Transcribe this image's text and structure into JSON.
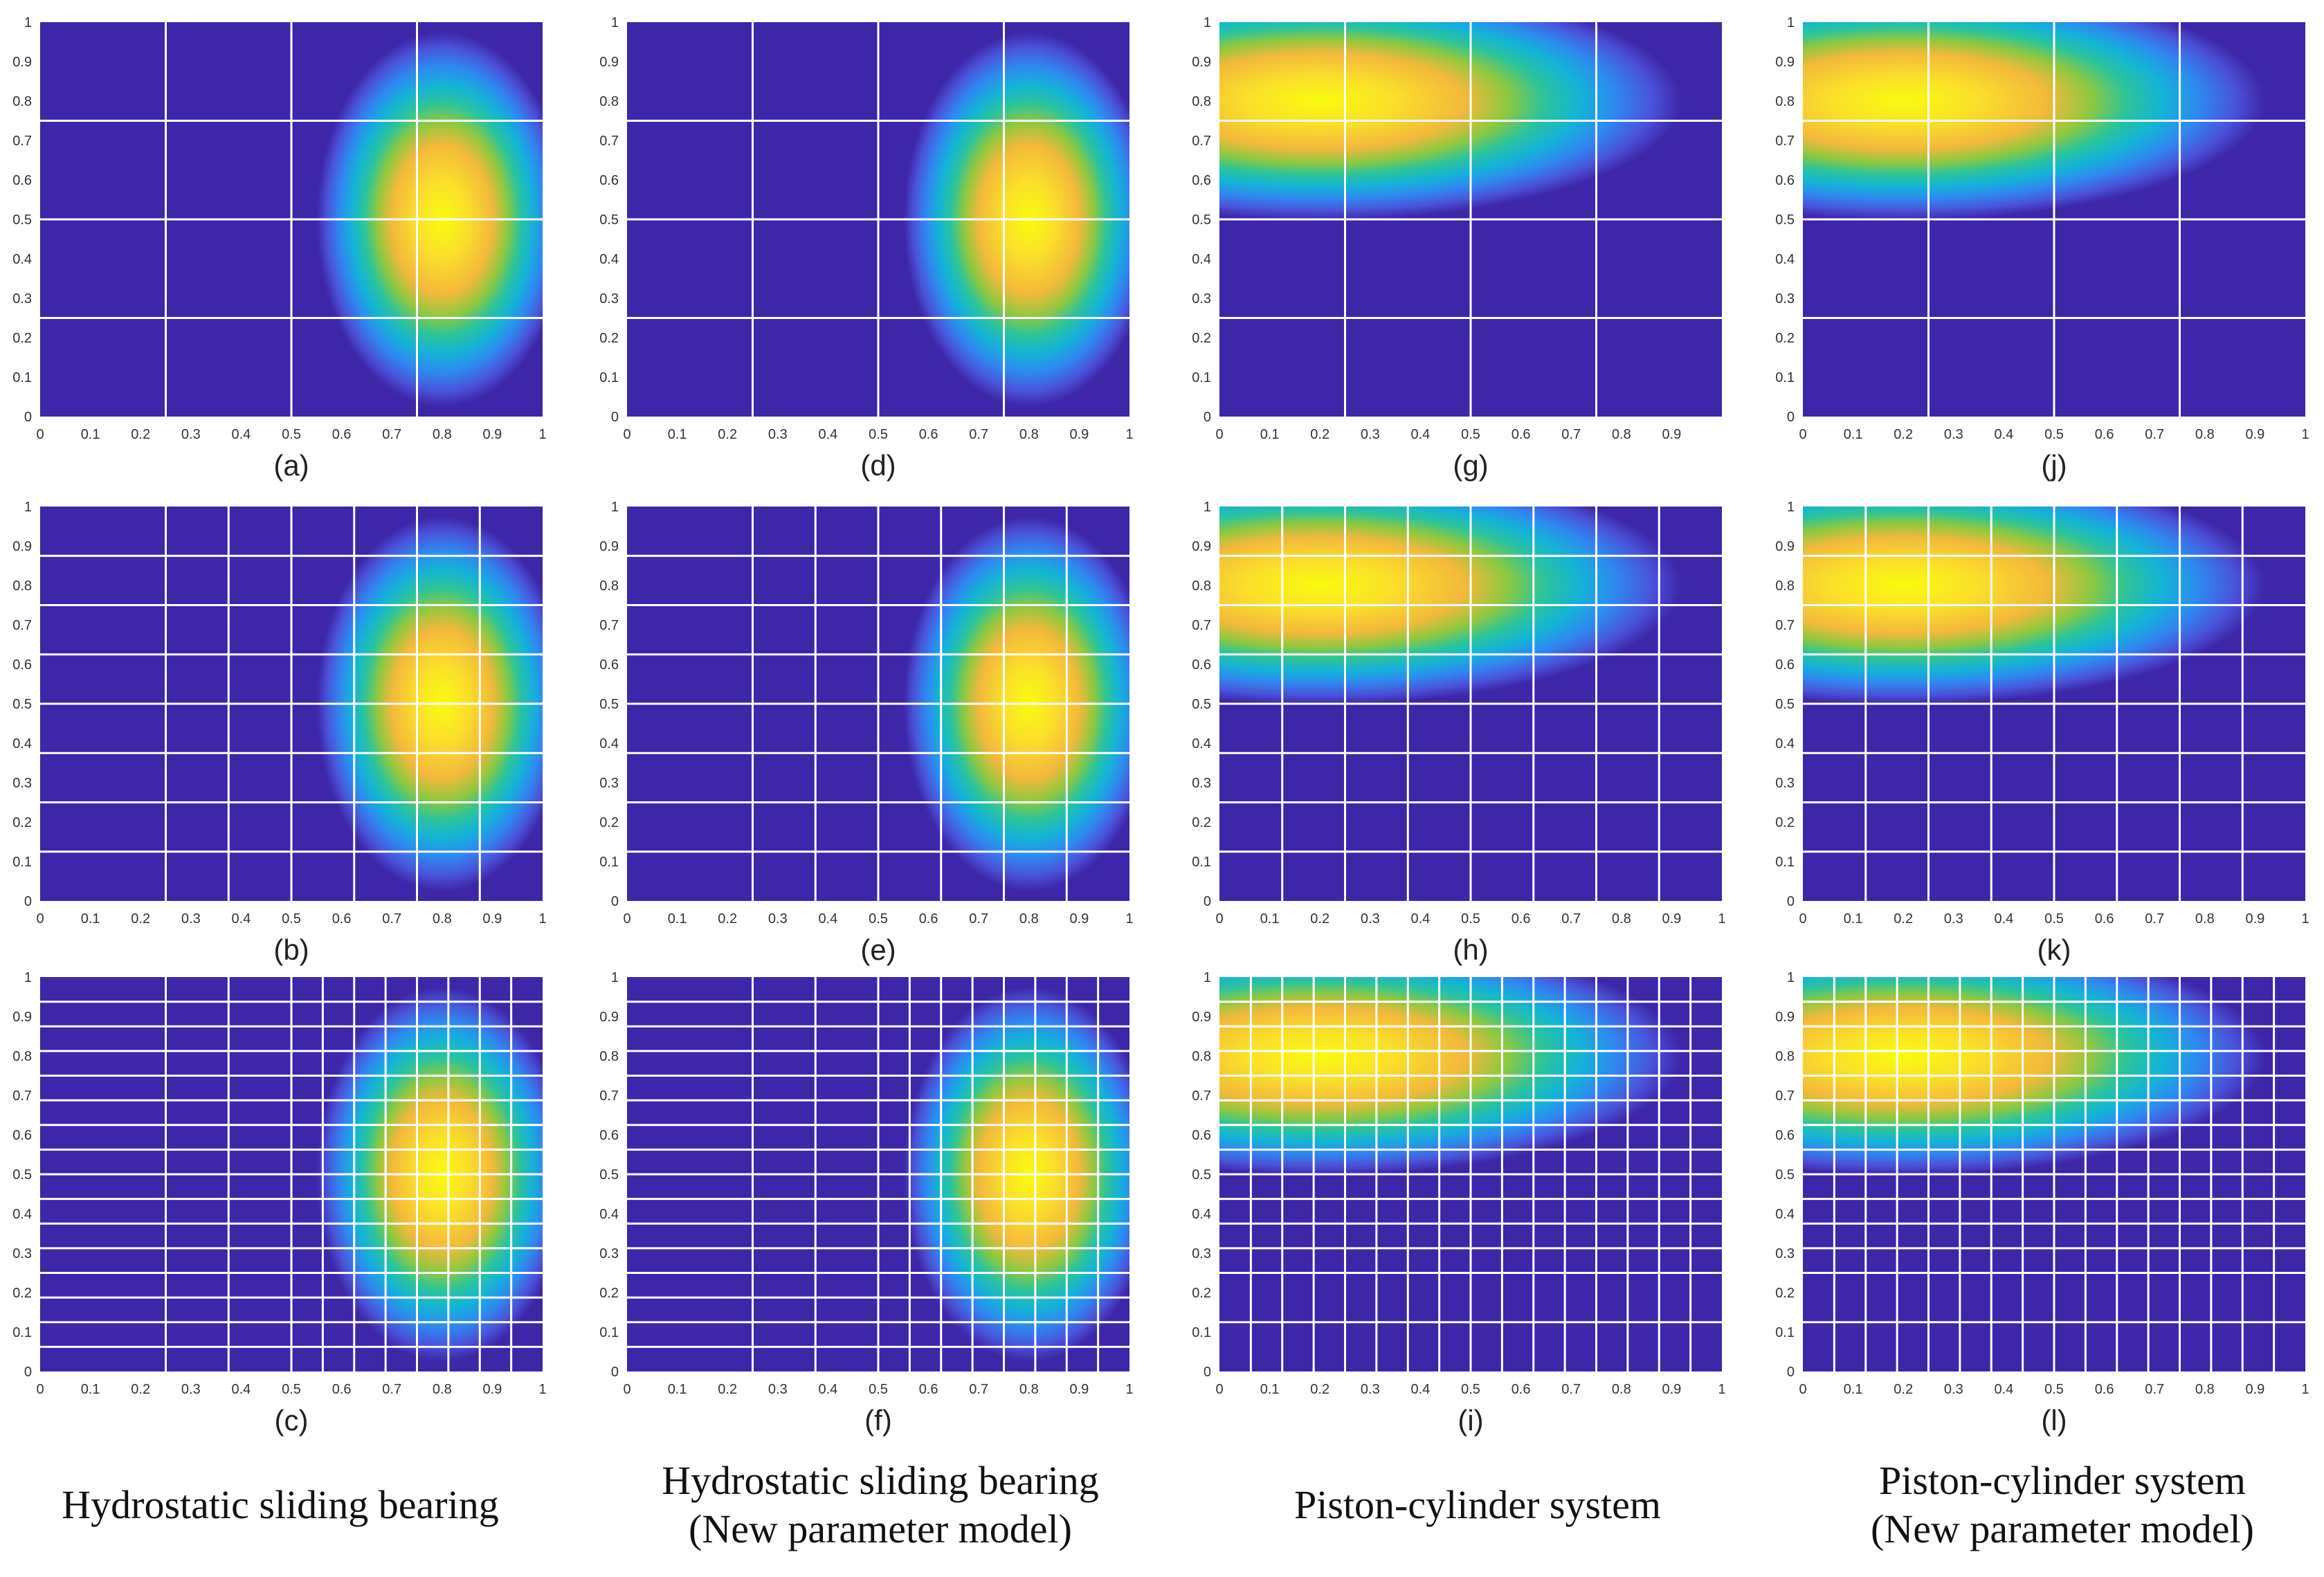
{
  "chart_data": [
    {
      "id": "a",
      "type": "heatmap",
      "label": "(a)",
      "system": "bearing",
      "xlim": [
        0,
        1
      ],
      "ylim": [
        0,
        1
      ],
      "xticks": [
        "0",
        "0.1",
        "0.2",
        "0.3",
        "0.4",
        "0.5",
        "0.6",
        "0.7",
        "0.8",
        "0.9",
        "1"
      ],
      "yticks": [
        "0",
        "0.1",
        "0.2",
        "0.3",
        "0.4",
        "0.5",
        "0.6",
        "0.7",
        "0.8",
        "0.9",
        "1"
      ],
      "peak": {
        "x": 0.8,
        "y": 0.5
      },
      "grid_x": [
        0.25,
        0.5,
        0.75
      ],
      "grid_y": [
        0.25,
        0.5,
        0.75
      ]
    },
    {
      "id": "d",
      "type": "heatmap",
      "label": "(d)",
      "system": "bearing",
      "xlim": [
        0,
        1
      ],
      "ylim": [
        0,
        1
      ],
      "xticks": [
        "0",
        "0.1",
        "0.2",
        "0.3",
        "0.4",
        "0.5",
        "0.6",
        "0.7",
        "0.8",
        "0.9",
        "1"
      ],
      "yticks": [
        "0",
        "0.1",
        "0.2",
        "0.3",
        "0.4",
        "0.5",
        "0.6",
        "0.7",
        "0.8",
        "0.9",
        "1"
      ],
      "peak": {
        "x": 0.8,
        "y": 0.5
      },
      "grid_x": [
        0.25,
        0.5,
        0.75
      ],
      "grid_y": [
        0.25,
        0.5,
        0.75
      ]
    },
    {
      "id": "g",
      "type": "heatmap",
      "label": "(g)",
      "system": "piston",
      "xlim": [
        0,
        1
      ],
      "ylim": [
        0,
        1
      ],
      "xticks": [
        "0",
        "0.1",
        "0.2",
        "0.3",
        "0.4",
        "0.5",
        "0.6",
        "0.7",
        "0.8",
        "0.9",
        ""
      ],
      "yticks": [
        "0",
        "0.1",
        "0.2",
        "0.3",
        "0.4",
        "0.5",
        "0.6",
        "0.7",
        "0.8",
        "0.9",
        "1"
      ],
      "peak": {
        "x": 0.2,
        "y": 0.8
      },
      "grid_x": [
        0.25,
        0.5,
        0.75
      ],
      "grid_y": [
        0.25,
        0.5,
        0.75
      ]
    },
    {
      "id": "j",
      "type": "heatmap",
      "label": "(j)",
      "system": "piston",
      "xlim": [
        0,
        1
      ],
      "ylim": [
        0,
        1
      ],
      "xticks": [
        "0",
        "0.1",
        "0.2",
        "0.3",
        "0.4",
        "0.5",
        "0.6",
        "0.7",
        "0.8",
        "0.9",
        "1"
      ],
      "yticks": [
        "0",
        "0.1",
        "0.2",
        "0.3",
        "0.4",
        "0.5",
        "0.6",
        "0.7",
        "0.8",
        "0.9",
        "1"
      ],
      "peak": {
        "x": 0.2,
        "y": 0.8
      },
      "grid_x": [
        0.25,
        0.5,
        0.75
      ],
      "grid_y": [
        0.25,
        0.5,
        0.75
      ]
    },
    {
      "id": "b",
      "type": "heatmap",
      "label": "(b)",
      "system": "bearing",
      "xlim": [
        0,
        1
      ],
      "ylim": [
        0,
        1
      ],
      "xticks": [
        "0",
        "0.1",
        "0.2",
        "0.3",
        "0.4",
        "0.5",
        "0.6",
        "0.7",
        "0.8",
        "0.9",
        "1"
      ],
      "yticks": [
        "0",
        "0.1",
        "0.2",
        "0.3",
        "0.4",
        "0.5",
        "0.6",
        "0.7",
        "0.8",
        "0.9",
        "1"
      ],
      "peak": {
        "x": 0.8,
        "y": 0.5
      },
      "grid_x": [
        0.25,
        0.375,
        0.5,
        0.625,
        0.75,
        0.875
      ],
      "grid_y": [
        0.125,
        0.25,
        0.375,
        0.5,
        0.625,
        0.75,
        0.875
      ]
    },
    {
      "id": "e",
      "type": "heatmap",
      "label": "(e)",
      "system": "bearing",
      "xlim": [
        0,
        1
      ],
      "ylim": [
        0,
        1
      ],
      "xticks": [
        "0",
        "0.1",
        "0.2",
        "0.3",
        "0.4",
        "0.5",
        "0.6",
        "0.7",
        "0.8",
        "0.9",
        "1"
      ],
      "yticks": [
        "0",
        "0.1",
        "0.2",
        "0.3",
        "0.4",
        "0.5",
        "0.6",
        "0.7",
        "0.8",
        "0.9",
        "1"
      ],
      "peak": {
        "x": 0.8,
        "y": 0.5
      },
      "grid_x": [
        0.25,
        0.375,
        0.5,
        0.625,
        0.75,
        0.875
      ],
      "grid_y": [
        0.125,
        0.25,
        0.375,
        0.5,
        0.625,
        0.75,
        0.875
      ]
    },
    {
      "id": "h",
      "type": "heatmap",
      "label": "(h)",
      "system": "piston",
      "xlim": [
        0,
        1
      ],
      "ylim": [
        0,
        1
      ],
      "xticks": [
        "0",
        "0.1",
        "0.2",
        "0.3",
        "0.4",
        "0.5",
        "0.6",
        "0.7",
        "0.8",
        "0.9",
        "1"
      ],
      "yticks": [
        "0",
        "0.1",
        "0.2",
        "0.3",
        "0.4",
        "0.5",
        "0.6",
        "0.7",
        "0.8",
        "0.9",
        "1"
      ],
      "peak": {
        "x": 0.2,
        "y": 0.8
      },
      "grid_x": [
        0.125,
        0.25,
        0.375,
        0.5,
        0.625,
        0.75,
        0.875
      ],
      "grid_y": [
        0.125,
        0.25,
        0.375,
        0.5,
        0.625,
        0.75,
        0.875
      ]
    },
    {
      "id": "k",
      "type": "heatmap",
      "label": "(k)",
      "system": "piston",
      "xlim": [
        0,
        1
      ],
      "ylim": [
        0,
        1
      ],
      "xticks": [
        "0",
        "0.1",
        "0.2",
        "0.3",
        "0.4",
        "0.5",
        "0.6",
        "0.7",
        "0.8",
        "0.9",
        "1"
      ],
      "yticks": [
        "0",
        "0.1",
        "0.2",
        "0.3",
        "0.4",
        "0.5",
        "0.6",
        "0.7",
        "0.8",
        "0.9",
        "1"
      ],
      "peak": {
        "x": 0.2,
        "y": 0.8
      },
      "grid_x": [
        0.125,
        0.25,
        0.375,
        0.5,
        0.625,
        0.75,
        0.875
      ],
      "grid_y": [
        0.125,
        0.25,
        0.375,
        0.5,
        0.625,
        0.75,
        0.875
      ]
    },
    {
      "id": "c",
      "type": "heatmap",
      "label": "(c)",
      "system": "bearing",
      "xlim": [
        0,
        1
      ],
      "ylim": [
        0,
        1
      ],
      "xticks": [
        "0",
        "0.1",
        "0.2",
        "0.3",
        "0.4",
        "0.5",
        "0.6",
        "0.7",
        "0.8",
        "0.9",
        "1"
      ],
      "yticks": [
        "0",
        "0.1",
        "0.2",
        "0.3",
        "0.4",
        "0.5",
        "0.6",
        "0.7",
        "0.8",
        "0.9",
        "1"
      ],
      "peak": {
        "x": 0.8,
        "y": 0.5
      },
      "grid_x": [
        0.25,
        0.375,
        0.5,
        0.5625,
        0.625,
        0.6875,
        0.75,
        0.8125,
        0.875,
        0.9375
      ],
      "grid_y": [
        0.0625,
        0.125,
        0.1875,
        0.25,
        0.3125,
        0.375,
        0.4375,
        0.5,
        0.5625,
        0.625,
        0.6875,
        0.75,
        0.8125,
        0.875,
        0.9375
      ]
    },
    {
      "id": "f",
      "type": "heatmap",
      "label": "(f)",
      "system": "bearing",
      "xlim": [
        0,
        1
      ],
      "ylim": [
        0,
        1
      ],
      "xticks": [
        "0",
        "0.1",
        "0.2",
        "0.3",
        "0.4",
        "0.5",
        "0.6",
        "0.7",
        "0.8",
        "0.9",
        "1"
      ],
      "yticks": [
        "0",
        "0.1",
        "0.2",
        "0.3",
        "0.4",
        "0.5",
        "0.6",
        "0.7",
        "0.8",
        "0.9",
        "1"
      ],
      "peak": {
        "x": 0.8,
        "y": 0.5
      },
      "grid_x": [
        0.25,
        0.375,
        0.5,
        0.5625,
        0.625,
        0.6875,
        0.75,
        0.8125,
        0.875,
        0.9375
      ],
      "grid_y": [
        0.0625,
        0.125,
        0.1875,
        0.25,
        0.3125,
        0.375,
        0.4375,
        0.5,
        0.5625,
        0.625,
        0.6875,
        0.75,
        0.8125,
        0.875,
        0.9375
      ]
    },
    {
      "id": "i",
      "type": "heatmap",
      "label": "(i)",
      "system": "piston",
      "xlim": [
        0,
        1
      ],
      "ylim": [
        0,
        1
      ],
      "xticks": [
        "0",
        "0.1",
        "0.2",
        "0.3",
        "0.4",
        "0.5",
        "0.6",
        "0.7",
        "0.8",
        "0.9",
        "1"
      ],
      "yticks": [
        "0",
        "0.1",
        "0.2",
        "0.3",
        "0.4",
        "0.5",
        "0.6",
        "0.7",
        "0.8",
        "0.9",
        "1"
      ],
      "peak": {
        "x": 0.2,
        "y": 0.8
      },
      "grid_x": [
        0.0625,
        0.125,
        0.1875,
        0.25,
        0.3125,
        0.375,
        0.4375,
        0.5,
        0.5625,
        0.625,
        0.6875,
        0.75,
        0.8125,
        0.875,
        0.9375
      ],
      "grid_y": [
        0.125,
        0.25,
        0.3125,
        0.375,
        0.4375,
        0.5,
        0.5625,
        0.625,
        0.6875,
        0.75,
        0.8125,
        0.875,
        0.9375
      ]
    },
    {
      "id": "l",
      "type": "heatmap",
      "label": "(l)",
      "system": "piston",
      "xlim": [
        0,
        1
      ],
      "ylim": [
        0,
        1
      ],
      "xticks": [
        "0",
        "0.1",
        "0.2",
        "0.3",
        "0.4",
        "0.5",
        "0.6",
        "0.7",
        "0.8",
        "0.9",
        "1"
      ],
      "yticks": [
        "0",
        "0.1",
        "0.2",
        "0.3",
        "0.4",
        "0.5",
        "0.6",
        "0.7",
        "0.8",
        "0.9",
        "1"
      ],
      "peak": {
        "x": 0.2,
        "y": 0.8
      },
      "grid_x": [
        0.0625,
        0.125,
        0.1875,
        0.25,
        0.3125,
        0.375,
        0.4375,
        0.5,
        0.5625,
        0.625,
        0.6875,
        0.75,
        0.8125,
        0.875,
        0.9375
      ],
      "grid_y": [
        0.125,
        0.25,
        0.3125,
        0.375,
        0.4375,
        0.5,
        0.5625,
        0.625,
        0.6875,
        0.75,
        0.8125,
        0.875,
        0.9375
      ]
    }
  ],
  "colormap": [
    "#3e26a8",
    "#4a52d9",
    "#2f88f0",
    "#14b3d7",
    "#2cc49a",
    "#8ec841",
    "#f3b93b",
    "#fbe02a",
    "#f9fb0e"
  ],
  "grid_color": "#ffffff",
  "captions": {
    "col1_line1": "Hydrostatic sliding bearing",
    "col2_line1": "Hydrostatic sliding bearing",
    "col2_line2": "(New  parameter model)",
    "col3_line1": "Piston-cylinder system",
    "col4_line1": "Piston-cylinder system",
    "col4_line2": "(New parameter model)"
  }
}
